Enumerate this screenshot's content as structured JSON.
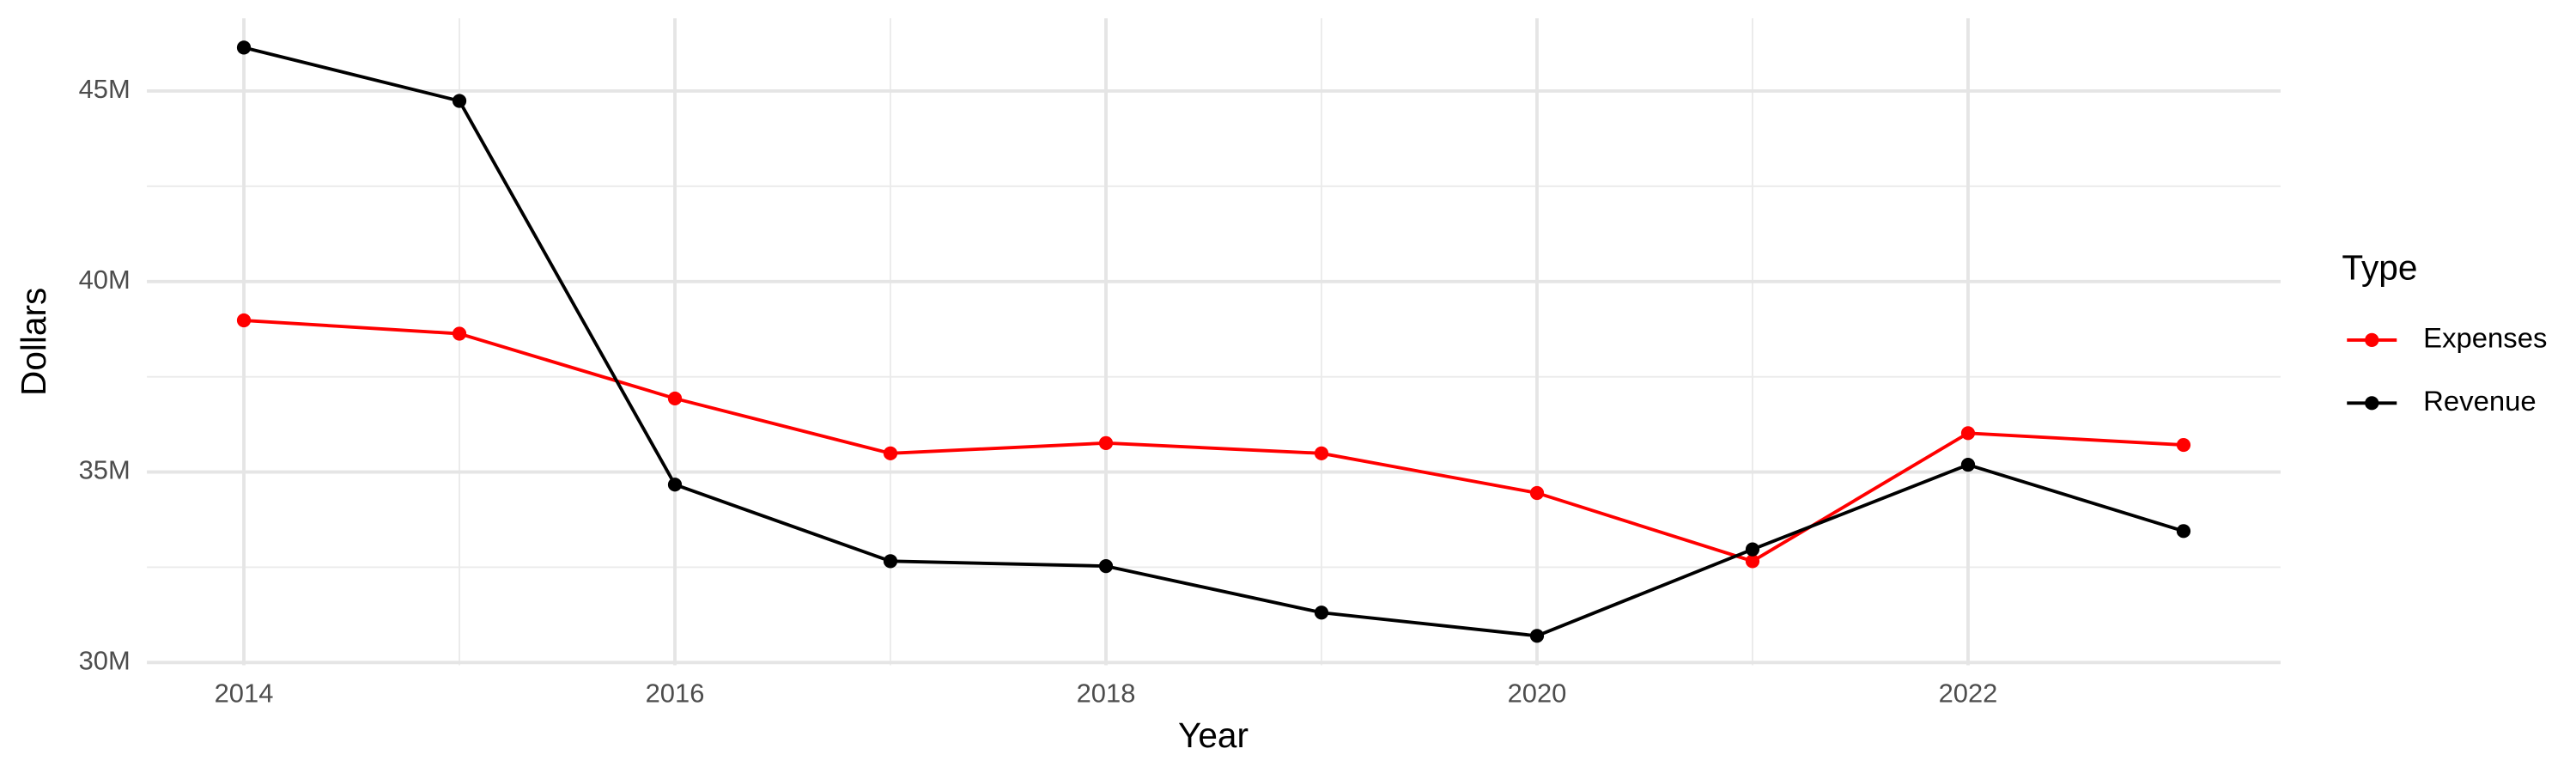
{
  "chart_data": {
    "type": "line",
    "x_label": "Year",
    "y_label": "Dollars",
    "legend_title": "Type",
    "x": [
      2014,
      2015,
      2016,
      2017,
      2018,
      2019,
      2020,
      2021,
      2022,
      2023
    ],
    "series": [
      {
        "name": "Expenses",
        "color": "#ff0000",
        "values": [
          38980000,
          38630000,
          36930000,
          35490000,
          35760000,
          35490000,
          34450000,
          32660000,
          36020000,
          35710000
        ]
      },
      {
        "name": "Revenue",
        "color": "#000000",
        "values": [
          46140000,
          44740000,
          34670000,
          32660000,
          32530000,
          31310000,
          30700000,
          32970000,
          35190000,
          33450000
        ]
      }
    ],
    "xlim": [
      2013.55,
      2023.45
    ],
    "xticks": [
      2014,
      2016,
      2018,
      2020,
      2022
    ],
    "ylim": [
      29930000,
      46910000
    ],
    "yticks": [
      {
        "value": 30000000,
        "label": "30M"
      },
      {
        "value": 35000000,
        "label": "35M"
      },
      {
        "value": 40000000,
        "label": "40M"
      },
      {
        "value": 45000000,
        "label": "45M"
      }
    ],
    "grid": true,
    "legend_position": "right"
  }
}
